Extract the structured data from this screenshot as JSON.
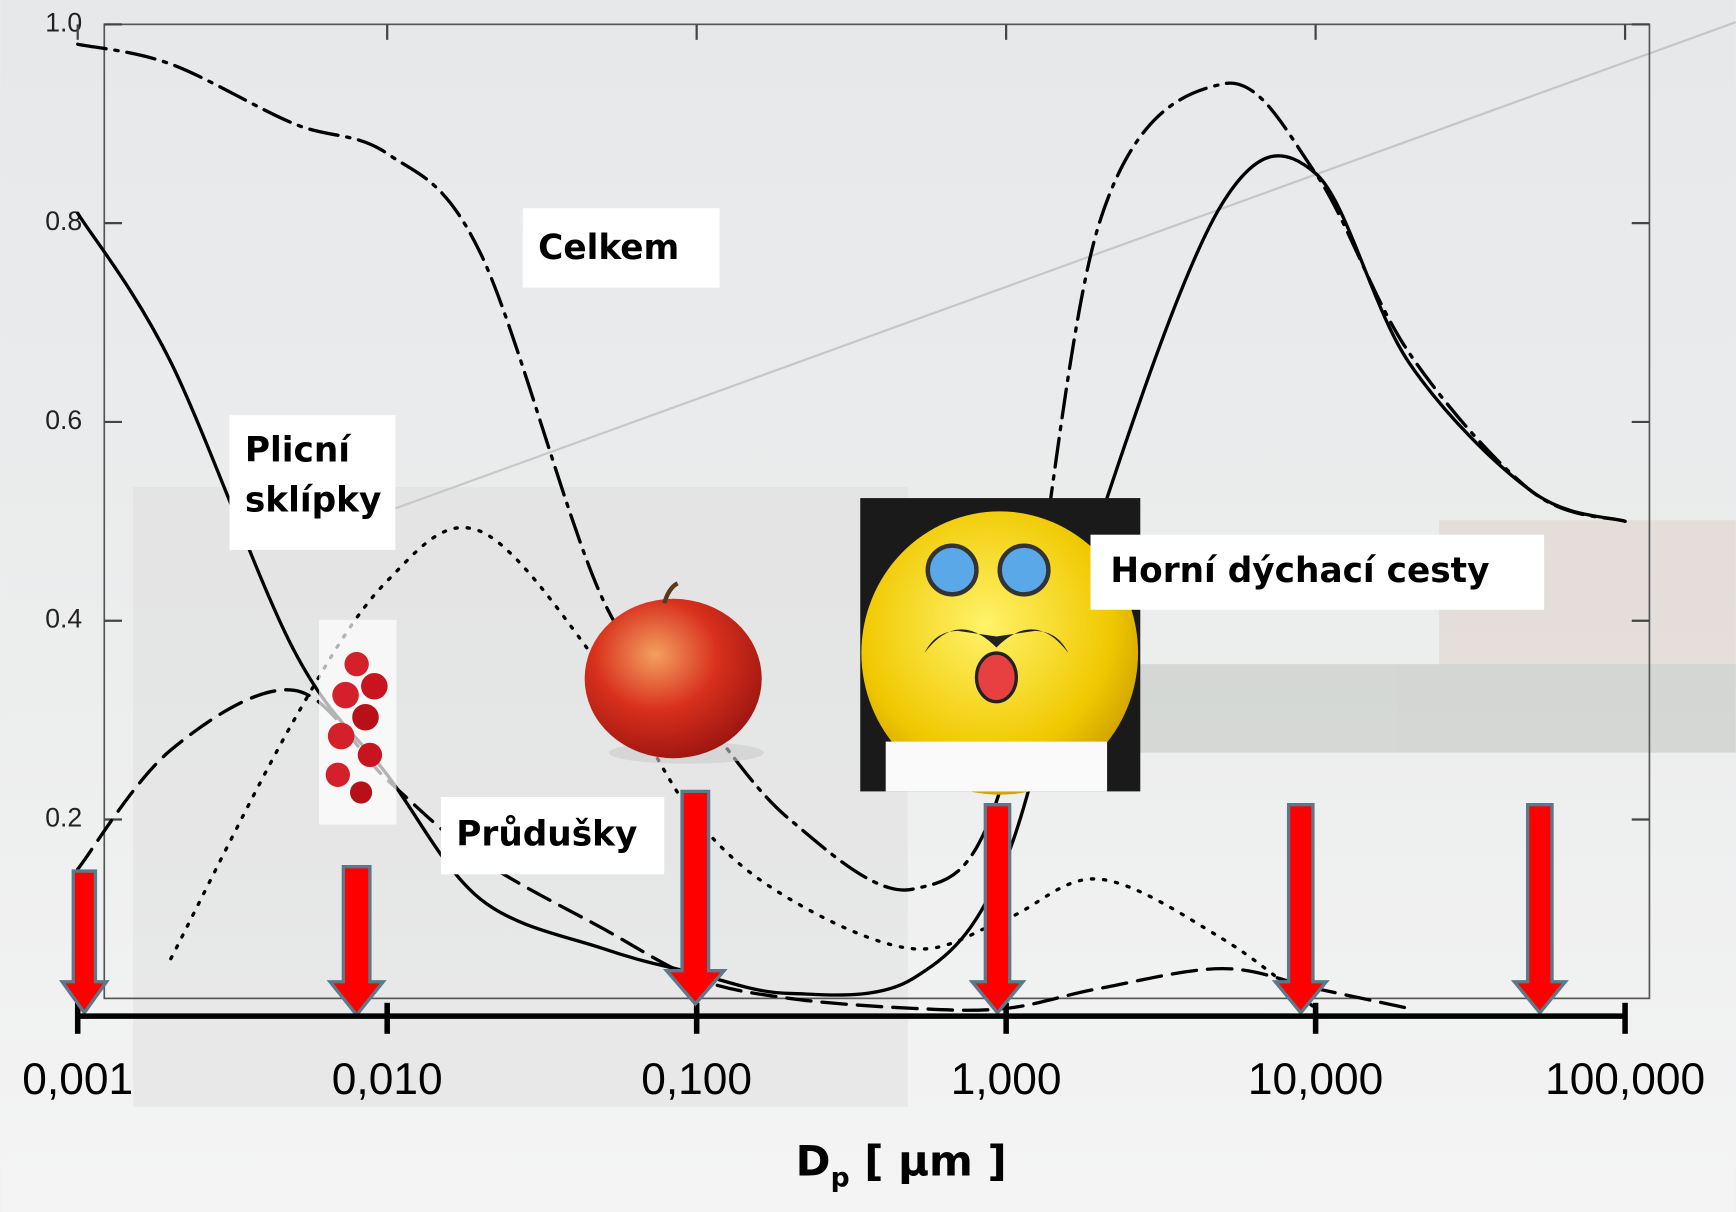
{
  "chart_data": {
    "type": "line",
    "x_label": {
      "main": "D",
      "sub": "p",
      "rest": " [ μm ]"
    },
    "x": [
      0.001,
      0.002,
      0.005,
      0.01,
      0.02,
      0.05,
      0.1,
      0.2,
      0.5,
      1,
      2,
      5,
      10,
      20,
      50,
      100
    ],
    "series": [
      {
        "name": "Celkem",
        "color": "#000000",
        "style": "dashdot",
        "values": [
          0.98,
          0.96,
          0.9,
          0.87,
          0.77,
          0.42,
          0.31,
          0.2,
          0.13,
          0.25,
          0.8,
          0.94,
          0.85,
          0.67,
          0.53,
          0.5
        ]
      },
      {
        "name": "Horní dýchací cesty",
        "color": "#000000",
        "style": "solid",
        "values": [
          0.81,
          0.66,
          0.37,
          0.245,
          0.12,
          0.07,
          0.045,
          0.025,
          0.04,
          0.16,
          0.5,
          0.82,
          0.85,
          0.66,
          0.53,
          0.5
        ]
      },
      {
        "name": "Průdušky",
        "color": "#000000",
        "style": "dashed",
        "values": [
          0.15,
          0.27,
          0.33,
          0.24,
          0.16,
          0.09,
          0.04,
          0.02,
          0.01,
          0.01,
          0.03,
          0.05,
          0.03,
          0.01,
          null,
          null
        ]
      },
      {
        "name": "Plicní sklípky",
        "color": "#000000",
        "style": "dotted",
        "values": [
          null,
          0.06,
          0.3,
          0.44,
          0.49,
          0.35,
          0.2,
          0.12,
          0.07,
          0.1,
          0.14,
          0.08,
          0.01,
          null,
          null,
          null
        ]
      }
    ],
    "log_x": true,
    "xlim": [
      0.001,
      100
    ],
    "xticks": [
      {
        "value": 0.001,
        "label": "0,001"
      },
      {
        "value": 0.01,
        "label": "0,010"
      },
      {
        "value": 0.1,
        "label": "0,100"
      },
      {
        "value": 1,
        "label": "1,000"
      },
      {
        "value": 10,
        "label": "10,000"
      },
      {
        "value": 100,
        "label": "100,000"
      }
    ],
    "ylim": [
      0,
      1
    ],
    "yticks": [
      0.2,
      0.4,
      0.6,
      0.8,
      {
        "value": 1,
        "label": "1.0"
      }
    ]
  }
}
